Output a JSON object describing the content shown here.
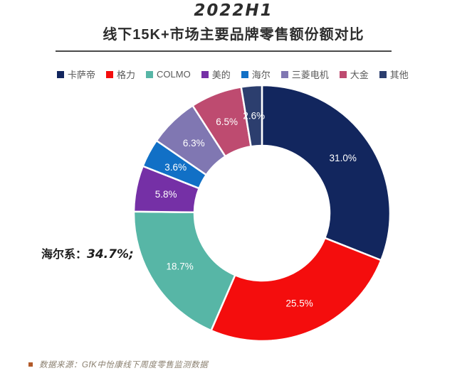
{
  "title": {
    "line1": "2022H1",
    "line2": "线下15K+市场主要品牌零售额份额对比"
  },
  "annotation": {
    "prefix": "海尔系：",
    "value": "34.7%;"
  },
  "footer": {
    "text": "数据来源：GfK中怡康线下周度零售监测数据"
  },
  "colors": {
    "title_text": "#2d2d2d",
    "legend_text": "#595959",
    "footer_bullet": "#b25a2a",
    "footer_text": "#8b8070",
    "slice_border": "#ffffff"
  },
  "chart_data": {
    "type": "pie",
    "subtype": "donut",
    "title": "2022H1 线下15K+市场主要品牌零售额份额对比",
    "categories": [
      "卡萨帝",
      "格力",
      "COLMO",
      "美的",
      "海尔",
      "三菱电机",
      "大金",
      "其他"
    ],
    "values": [
      31.0,
      25.5,
      18.7,
      5.8,
      3.6,
      6.3,
      6.5,
      2.6
    ],
    "data_labels": [
      "31.0%",
      "25.5%",
      "18.7%",
      "5.8%",
      "3.6%",
      "6.3%",
      "6.5%",
      "2.6%"
    ],
    "colors": [
      "#12265E",
      "#F40D0D",
      "#57B6A6",
      "#7530A6",
      "#1170C6",
      "#8077B2",
      "#BE4B70",
      "#2C3E6E"
    ],
    "start_angle_deg": 0,
    "direction": "clockwise",
    "inner_radius_ratio": 0.53,
    "legend_position": "top",
    "annotation": "海尔系：34.7%;"
  }
}
